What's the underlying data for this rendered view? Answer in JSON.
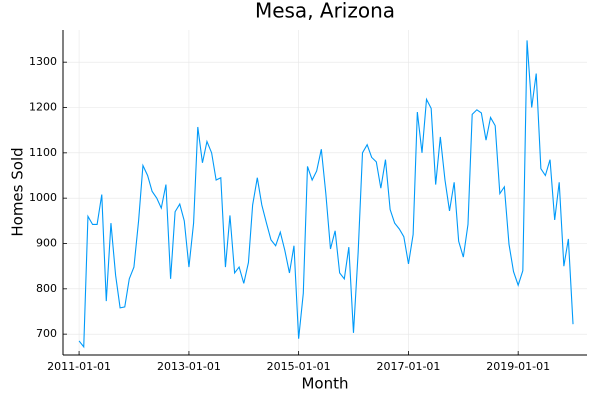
{
  "chart_data": {
    "type": "line",
    "title": "Mesa, Arizona",
    "x_label": "Month",
    "y_label": "Homes Sold",
    "color": "#009af9",
    "grid": true,
    "x": [
      "2011-01-01",
      "2011-02-01",
      "2011-03-01",
      "2011-04-01",
      "2011-05-01",
      "2011-06-01",
      "2011-07-01",
      "2011-08-01",
      "2011-09-01",
      "2011-10-01",
      "2011-11-01",
      "2011-12-01",
      "2012-01-01",
      "2012-02-01",
      "2012-03-01",
      "2012-04-01",
      "2012-05-01",
      "2012-06-01",
      "2012-07-01",
      "2012-08-01",
      "2012-09-01",
      "2012-10-01",
      "2012-11-01",
      "2012-12-01",
      "2013-01-01",
      "2013-02-01",
      "2013-03-01",
      "2013-04-01",
      "2013-05-01",
      "2013-06-01",
      "2013-07-01",
      "2013-08-01",
      "2013-09-01",
      "2013-10-01",
      "2013-11-01",
      "2013-12-01",
      "2014-01-01",
      "2014-02-01",
      "2014-03-01",
      "2014-04-01",
      "2014-05-01",
      "2014-06-01",
      "2014-07-01",
      "2014-08-01",
      "2014-09-01",
      "2014-10-01",
      "2014-11-01",
      "2014-12-01",
      "2015-01-01",
      "2015-02-01",
      "2015-03-01",
      "2015-04-01",
      "2015-05-01",
      "2015-06-01",
      "2015-07-01",
      "2015-08-01",
      "2015-09-01",
      "2015-10-01",
      "2015-11-01",
      "2015-12-01",
      "2016-01-01",
      "2016-02-01",
      "2016-03-01",
      "2016-04-01",
      "2016-05-01",
      "2016-06-01",
      "2016-07-01",
      "2016-08-01",
      "2016-09-01",
      "2016-10-01",
      "2016-11-01",
      "2016-12-01",
      "2017-01-01",
      "2017-02-01",
      "2017-03-01",
      "2017-04-01",
      "2017-05-01",
      "2017-06-01",
      "2017-07-01",
      "2017-08-01",
      "2017-09-01",
      "2017-10-01",
      "2017-11-01",
      "2017-12-01",
      "2018-01-01",
      "2018-02-01",
      "2018-03-01",
      "2018-04-01",
      "2018-05-01",
      "2018-06-01",
      "2018-07-01",
      "2018-08-01",
      "2018-09-01",
      "2018-10-01",
      "2018-11-01",
      "2018-12-01",
      "2019-01-01",
      "2019-02-01",
      "2019-03-01",
      "2019-04-01",
      "2019-05-01",
      "2019-06-01",
      "2019-07-01",
      "2019-08-01",
      "2019-09-01",
      "2019-10-01",
      "2019-11-01",
      "2019-12-01",
      "2020-01-01"
    ],
    "values": [
      685,
      672,
      960,
      942,
      942,
      1008,
      773,
      945,
      830,
      758,
      760,
      822,
      848,
      950,
      1072,
      1050,
      1015,
      1000,
      978,
      1030,
      822,
      970,
      987,
      950,
      848,
      945,
      1157,
      1078,
      1125,
      1100,
      1040,
      1045,
      848,
      962,
      835,
      848,
      812,
      858,
      985,
      1045,
      985,
      945,
      908,
      895,
      925,
      885,
      835,
      895,
      690,
      790,
      1070,
      1040,
      1060,
      1108,
      1010,
      888,
      928,
      835,
      822,
      892,
      703,
      880,
      1100,
      1118,
      1090,
      1080,
      1022,
      1085,
      975,
      945,
      932,
      915,
      855,
      920,
      1190,
      1100,
      1218,
      1198,
      1030,
      1135,
      1040,
      972,
      1035,
      905,
      870,
      942,
      1185,
      1195,
      1188,
      1128,
      1178,
      1160,
      1010,
      1025,
      898,
      838,
      808,
      840,
      1348,
      1200,
      1275,
      1065,
      1050,
      1085,
      952,
      1035,
      850,
      910,
      722
    ],
    "xlim": [
      "2010-09-16",
      "2020-04-03"
    ],
    "xticks": [
      "2011-01-01",
      "2013-01-01",
      "2015-01-01",
      "2017-01-01",
      "2019-01-01"
    ],
    "ylim": [
      654,
      1371
    ],
    "yticks": [
      700,
      800,
      900,
      1000,
      1100,
      1200,
      1300
    ]
  }
}
